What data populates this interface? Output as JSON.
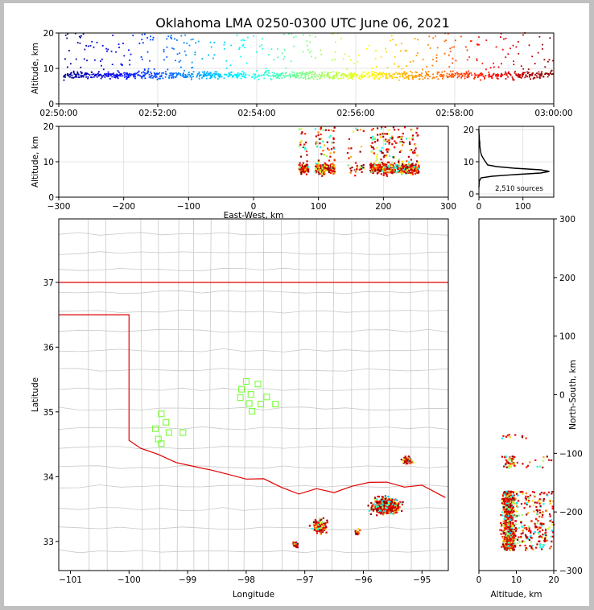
{
  "title": "Oklahoma LMA 0250-0300 UTC June 06, 2021",
  "panels": {
    "time_height": {
      "ylabel": "Altitude, km",
      "xticks": [
        "02:50:00",
        "02:52:00",
        "02:54:00",
        "02:56:00",
        "02:58:00",
        "03:00:00"
      ],
      "yticks": [
        "0",
        "10",
        "20"
      ]
    },
    "ew_height": {
      "ylabel": "Altitude, km",
      "xlabel": "East-West, km",
      "xticks": [
        "−300",
        "−200",
        "−100",
        "0",
        "100",
        "200",
        "300"
      ],
      "yticks": [
        "0",
        "10",
        "20"
      ]
    },
    "histogram": {
      "label": "2,510 sources",
      "xticks": [
        "0",
        "100"
      ],
      "yticks": [
        "0",
        "10",
        "20"
      ]
    },
    "map": {
      "xlabel": "Longitude",
      "ylabel": "Latitude",
      "xticks": [
        "−101",
        "−100",
        "−99",
        "−98",
        "−97",
        "−96",
        "−95"
      ],
      "yticks": [
        "33",
        "34",
        "35",
        "36",
        "37"
      ]
    },
    "ns_alt": {
      "xlabel": "Altitude, km",
      "ylabel": "North-South, km",
      "xticks": [
        "0",
        "10",
        "20"
      ],
      "yticks": [
        "300",
        "200",
        "100",
        "0",
        "−100",
        "−200",
        "−300"
      ]
    }
  },
  "colors": {
    "state_border": "#e00000",
    "county_lines": "#c8c8c8",
    "station_marker": "#7cfc3c"
  },
  "chart_data": [
    {
      "type": "scatter",
      "panel": "time_height",
      "x_range": [
        "02:50:00",
        "03:00:00"
      ],
      "ylim": [
        0,
        20
      ],
      "ylabel": "Altitude, km",
      "colormap": "jet (by time)",
      "clusters": [
        {
          "t0": 0.1,
          "t1": 9.99,
          "alt_mean": 8,
          "alt_spread": 2.5,
          "n": 1300
        }
      ]
    },
    {
      "type": "scatter",
      "panel": "ew_height",
      "xlim": [
        -300,
        300
      ],
      "ylim": [
        0,
        20
      ],
      "xlabel": "East-West, km",
      "ylabel": "Altitude, km",
      "clusters": [
        {
          "x0": 70,
          "x1": 85,
          "n": 90
        },
        {
          "x0": 95,
          "x1": 125,
          "n": 220
        },
        {
          "x0": 145,
          "x1": 170,
          "n": 40
        },
        {
          "x0": 180,
          "x1": 255,
          "n": 550
        }
      ]
    },
    {
      "type": "line",
      "panel": "histogram",
      "xlim": [
        0,
        170
      ],
      "ylim": [
        -1,
        21
      ],
      "text": "2,510 sources",
      "profile": [
        [
          0,
          2
        ],
        [
          1,
          4
        ],
        [
          5,
          5
        ],
        [
          30,
          5.5
        ],
        [
          80,
          6
        ],
        [
          140,
          6.5
        ],
        [
          160,
          7
        ],
        [
          140,
          7.5
        ],
        [
          80,
          8
        ],
        [
          40,
          8.5
        ],
        [
          20,
          9
        ],
        [
          15,
          10
        ],
        [
          10,
          11
        ],
        [
          6,
          12
        ],
        [
          4,
          13
        ],
        [
          3,
          14
        ],
        [
          2,
          15
        ],
        [
          2,
          16
        ],
        [
          1,
          17
        ],
        [
          1,
          18
        ],
        [
          0,
          19
        ],
        [
          0,
          20
        ]
      ]
    },
    {
      "type": "scatter",
      "panel": "map",
      "xlim": [
        -101.2,
        -94.55
      ],
      "ylim": [
        32.55,
        37.98
      ],
      "xlabel": "Longitude",
      "ylabel": "Latitude",
      "stations": [
        [
          -99.45,
          34.97
        ],
        [
          -99.37,
          34.84
        ],
        [
          -99.55,
          34.74
        ],
        [
          -99.32,
          34.68
        ],
        [
          -99.5,
          34.58
        ],
        [
          -99.45,
          34.51
        ],
        [
          -99.08,
          34.68
        ],
        [
          -98.0,
          35.47
        ],
        [
          -97.8,
          35.43
        ],
        [
          -98.08,
          35.35
        ],
        [
          -97.92,
          35.27
        ],
        [
          -98.1,
          35.22
        ],
        [
          -97.65,
          35.23
        ],
        [
          -97.95,
          35.13
        ],
        [
          -97.75,
          35.12
        ],
        [
          -97.5,
          35.12
        ],
        [
          -97.9,
          35.01
        ]
      ],
      "clusters": [
        {
          "lon": -95.6,
          "lat": 33.55,
          "dlon": 0.35,
          "dlat": 0.18,
          "n": 420
        },
        {
          "lon": -96.75,
          "lat": 33.23,
          "dlon": 0.18,
          "dlat": 0.15,
          "n": 140
        },
        {
          "lon": -95.25,
          "lat": 34.25,
          "dlon": 0.12,
          "dlat": 0.08,
          "n": 70
        },
        {
          "lon": -97.15,
          "lat": 32.95,
          "dlon": 0.06,
          "dlat": 0.06,
          "n": 30
        },
        {
          "lon": -96.1,
          "lat": 33.15,
          "dlon": 0.06,
          "dlat": 0.06,
          "n": 15
        }
      ]
    },
    {
      "type": "scatter",
      "panel": "ns_alt",
      "xlim": [
        0,
        20
      ],
      "ylim": [
        -300,
        300
      ],
      "xlabel": "Altitude, km",
      "ylabel": "North-South, km",
      "clusters": [
        {
          "y0": -265,
          "y1": -165,
          "n": 900
        },
        {
          "y0": -125,
          "y1": -105,
          "n": 60
        },
        {
          "y0": -75,
          "y1": -68,
          "n": 10
        }
      ]
    }
  ]
}
